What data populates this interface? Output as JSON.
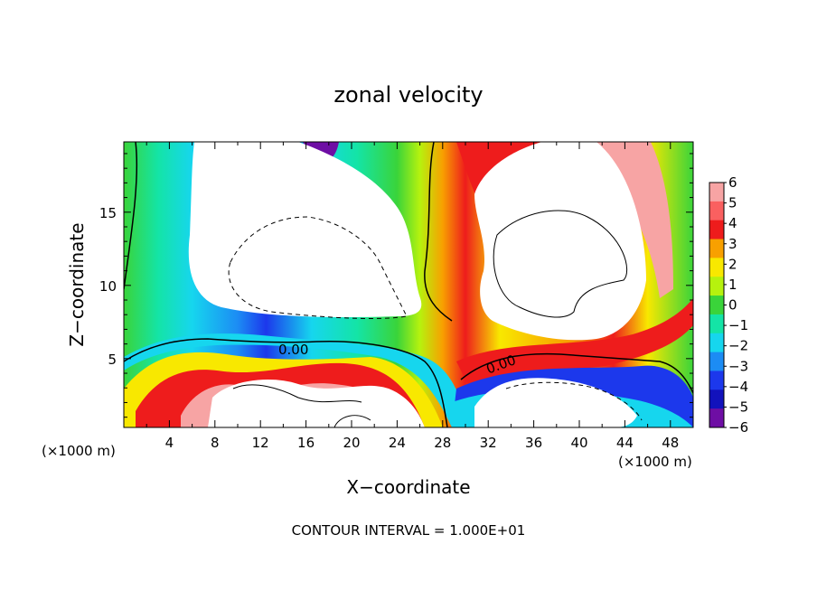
{
  "chart_data": {
    "type": "heatmap",
    "title": "zonal velocity",
    "xlabel": "X−coordinate",
    "ylabel": "Z−coordinate",
    "x_units_left": "(×1000 m)",
    "x_units_right": "(×1000 m)",
    "xlim": [
      0,
      50
    ],
    "ylim": [
      0.3,
      19.8
    ],
    "x_ticks": [
      4,
      8,
      12,
      16,
      20,
      24,
      28,
      32,
      36,
      40,
      44,
      48
    ],
    "y_ticks": [
      5,
      10,
      15
    ],
    "colorbar": {
      "levels": [
        6,
        5,
        4,
        3,
        2,
        1,
        0,
        -1,
        -2,
        -3,
        -4,
        -5,
        -6
      ],
      "level_labels": [
        "6",
        "5",
        "4",
        "3",
        "2",
        "1",
        "0",
        "−1",
        "−2",
        "−3",
        "−4",
        "−5",
        "−6"
      ],
      "colors": [
        "#f7a4a4",
        "#fa6060",
        "#ee1c1c",
        "#f8a000",
        "#f8e800",
        "#b6f20e",
        "#3ad43a",
        "#14e4a6",
        "#16d6ee",
        "#1c8cf4",
        "#1c38ec",
        "#1212bc",
        "#6e0ea4"
      ]
    },
    "contour_labels": [
      "0.00",
      "0.00"
    ],
    "contour_interval_label": "CONTOUR INTERVAL = 1.000E+01",
    "grid": false
  }
}
